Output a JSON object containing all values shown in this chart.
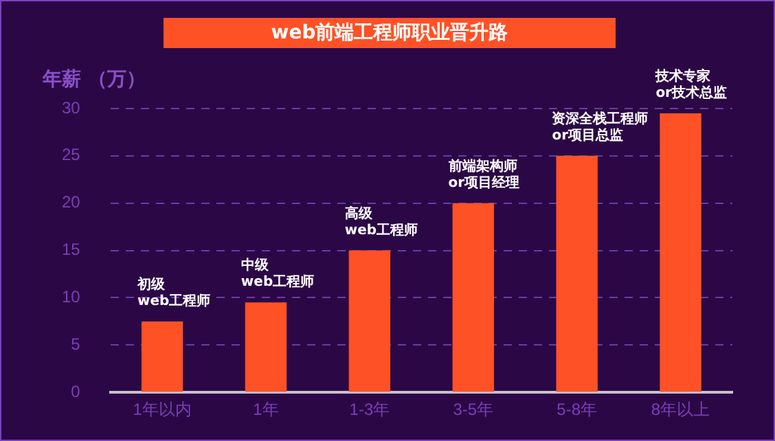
{
  "chart_data": {
    "type": "bar",
    "title": "web前端工程师职业晋升路",
    "ylabel": "年薪 （万）",
    "categories": [
      "1年以内",
      "1年",
      "1-3年",
      "3-5年",
      "5-8年",
      "8年以上"
    ],
    "values": [
      7.5,
      9.5,
      15,
      20,
      25,
      29.5
    ],
    "color": "#ff5126",
    "ylim": [
      0,
      30
    ],
    "yticks": [
      0,
      5,
      10,
      15,
      20,
      25,
      30
    ],
    "grid": "y",
    "annotations": [
      {
        "text": "初级\nweb工程师",
        "x": "1年以内",
        "y": 7.5
      },
      {
        "text": "中级\nweb工程师",
        "x": "1年",
        "y": 9.5
      },
      {
        "text": "高级\nweb工程师",
        "x": "1-3年",
        "y": 15
      },
      {
        "text": "前端架构师\nor项目经理",
        "x": "3-5年",
        "y": 20
      },
      {
        "text": "资深全栈工程师\nor项目总监",
        "x": "5-8年",
        "y": 25
      },
      {
        "text": "技术专家\nor技术总监",
        "x": "8年以上",
        "y": 29.5
      }
    ]
  }
}
